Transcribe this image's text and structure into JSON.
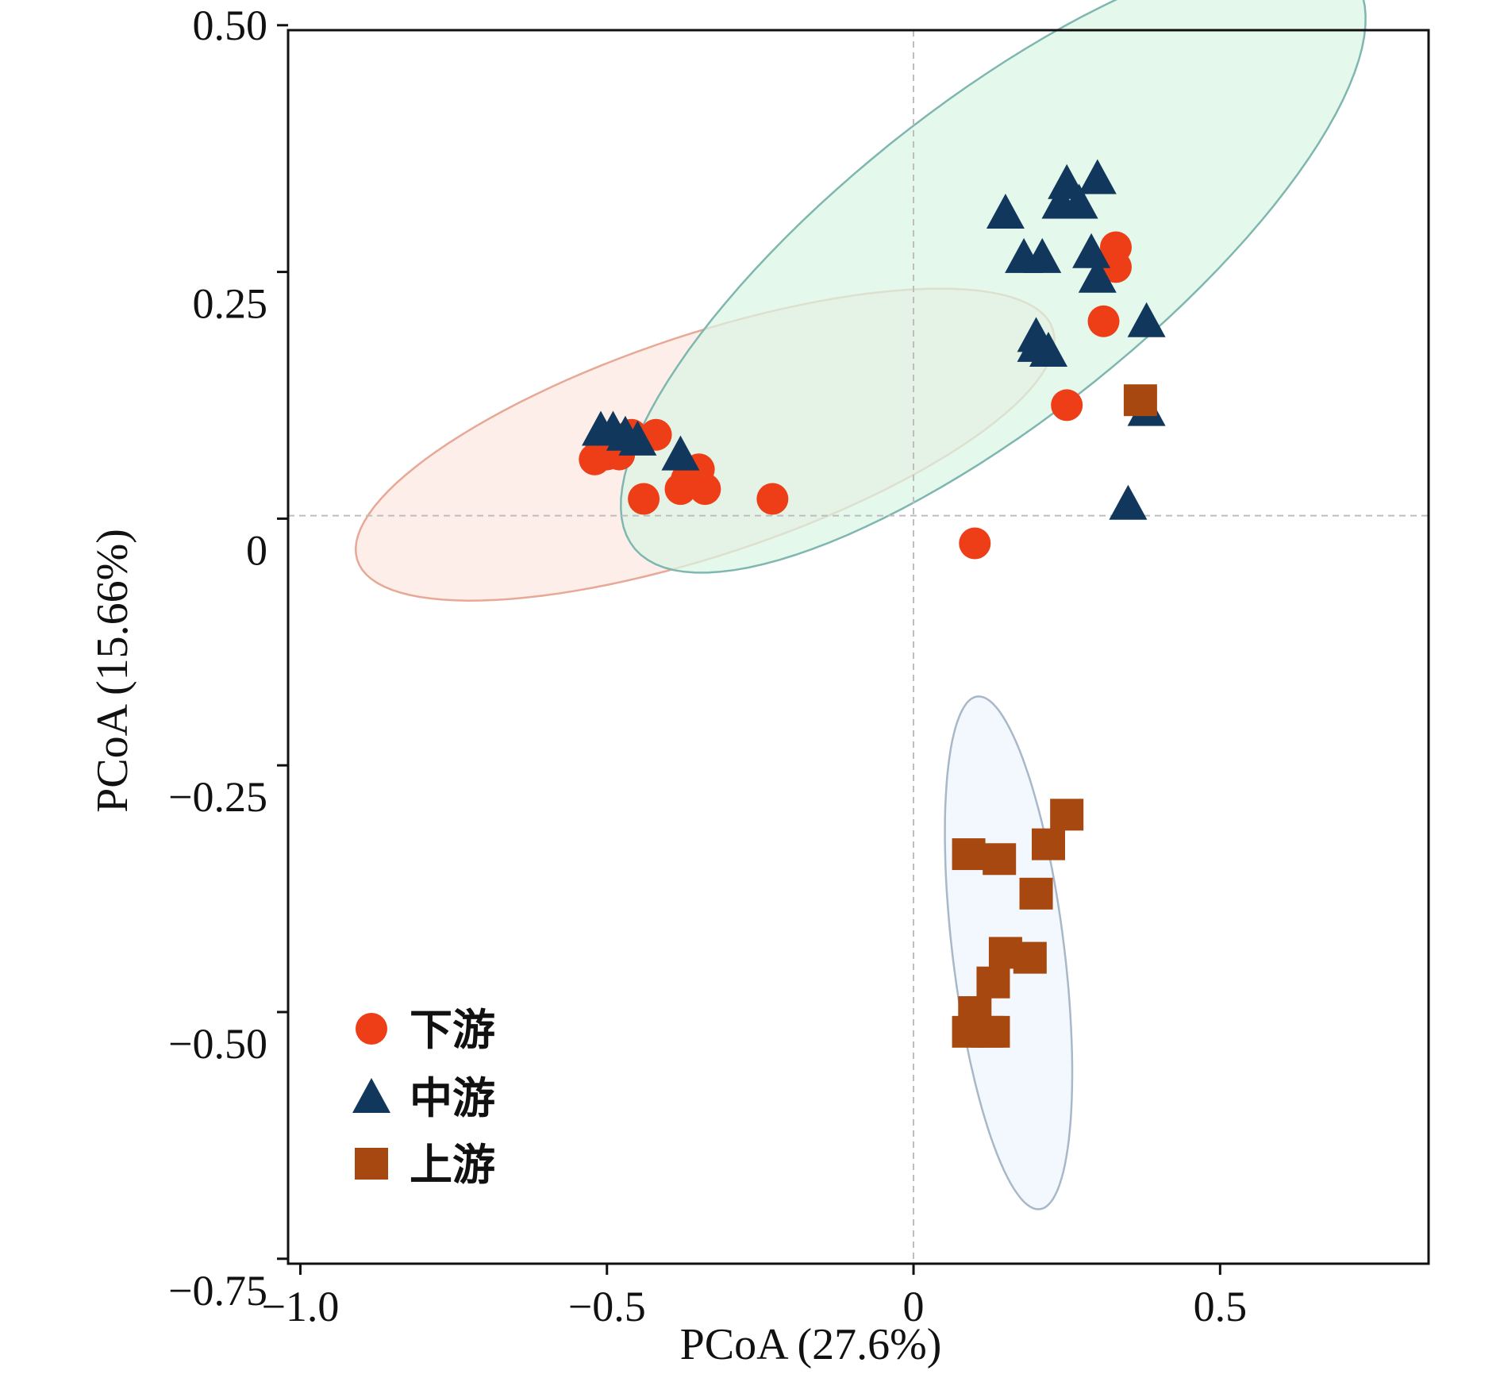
{
  "chart_data": {
    "type": "scatter",
    "xlabel": "PCoA (27.6%)",
    "ylabel": "PCoA (15.66%)",
    "xlim": [
      -1.02,
      0.84
    ],
    "ylim": [
      -0.755,
      0.495
    ],
    "x_ticks": [
      -1.0,
      -0.5,
      0,
      0.5
    ],
    "x_tick_labels": [
      "−1.0",
      "−0.5",
      "0",
      "0.5"
    ],
    "y_ticks": [
      0.5,
      0.25,
      0,
      -0.25,
      -0.5,
      -0.75
    ],
    "y_tick_labels": [
      "0.50",
      "0.25",
      "0",
      "−0.25",
      "−0.50",
      "−0.75"
    ],
    "reference_lines": {
      "x": 0,
      "y": 0.003
    },
    "legend_position": "bottom-left",
    "series": [
      {
        "name": "下游",
        "marker": "circle",
        "color": "#ee3e17",
        "points": [
          [
            -0.51,
            0.07
          ],
          [
            -0.52,
            0.06
          ],
          [
            -0.5,
            0.065
          ],
          [
            -0.48,
            0.065
          ],
          [
            -0.46,
            0.085
          ],
          [
            -0.42,
            0.085
          ],
          [
            -0.35,
            0.05
          ],
          [
            -0.37,
            0.04
          ],
          [
            -0.44,
            0.02
          ],
          [
            -0.38,
            0.03
          ],
          [
            -0.34,
            0.03
          ],
          [
            -0.23,
            0.02
          ],
          [
            0.1,
            -0.025
          ],
          [
            0.25,
            0.115
          ],
          [
            0.31,
            0.2
          ],
          [
            0.33,
            0.275
          ],
          [
            0.33,
            0.255
          ]
        ],
        "ellipse": {
          "cx": -0.34,
          "cy": 0.075,
          "rx": 0.58,
          "ry": 0.115,
          "angle_deg": 11,
          "fill": "#fde8e0",
          "stroke": "#e7a896"
        }
      },
      {
        "name": "中游",
        "marker": "triangle",
        "color": "#11385c",
        "points": [
          [
            -0.51,
            0.09
          ],
          [
            -0.49,
            0.09
          ],
          [
            -0.47,
            0.085
          ],
          [
            -0.45,
            0.08
          ],
          [
            -0.38,
            0.065
          ],
          [
            0.15,
            0.31
          ],
          [
            0.18,
            0.265
          ],
          [
            0.21,
            0.265
          ],
          [
            0.25,
            0.34
          ],
          [
            0.24,
            0.32
          ],
          [
            0.27,
            0.32
          ],
          [
            0.3,
            0.345
          ],
          [
            0.29,
            0.27
          ],
          [
            0.3,
            0.245
          ],
          [
            0.2,
            0.185
          ],
          [
            0.2,
            0.175
          ],
          [
            0.22,
            0.17
          ],
          [
            0.38,
            0.2
          ],
          [
            0.38,
            0.11
          ],
          [
            0.35,
            0.015
          ]
        ],
        "ellipse": {
          "cx": 0.13,
          "cy": 0.26,
          "rx": 0.66,
          "ry": 0.18,
          "angle_deg": 24,
          "fill": "#dbf5e4",
          "stroke": "#7fb7b0"
        }
      },
      {
        "name": "上游",
        "marker": "square",
        "color": "#a6480f",
        "points": [
          [
            0.37,
            0.12
          ],
          [
            0.25,
            -0.3
          ],
          [
            0.22,
            -0.33
          ],
          [
            0.09,
            -0.34
          ],
          [
            0.14,
            -0.345
          ],
          [
            0.2,
            -0.38
          ],
          [
            0.15,
            -0.44
          ],
          [
            0.19,
            -0.445
          ],
          [
            0.13,
            -0.47
          ],
          [
            0.1,
            -0.5
          ],
          [
            0.13,
            -0.52
          ],
          [
            0.09,
            -0.52
          ],
          [
            0.12,
            -0.52
          ]
        ],
        "ellipse": {
          "cx": 0.155,
          "cy": -0.44,
          "rx": 0.09,
          "ry": 0.265,
          "angle_deg": 12,
          "fill": "#eef5fd",
          "stroke": "#a8b8c8"
        }
      }
    ]
  }
}
